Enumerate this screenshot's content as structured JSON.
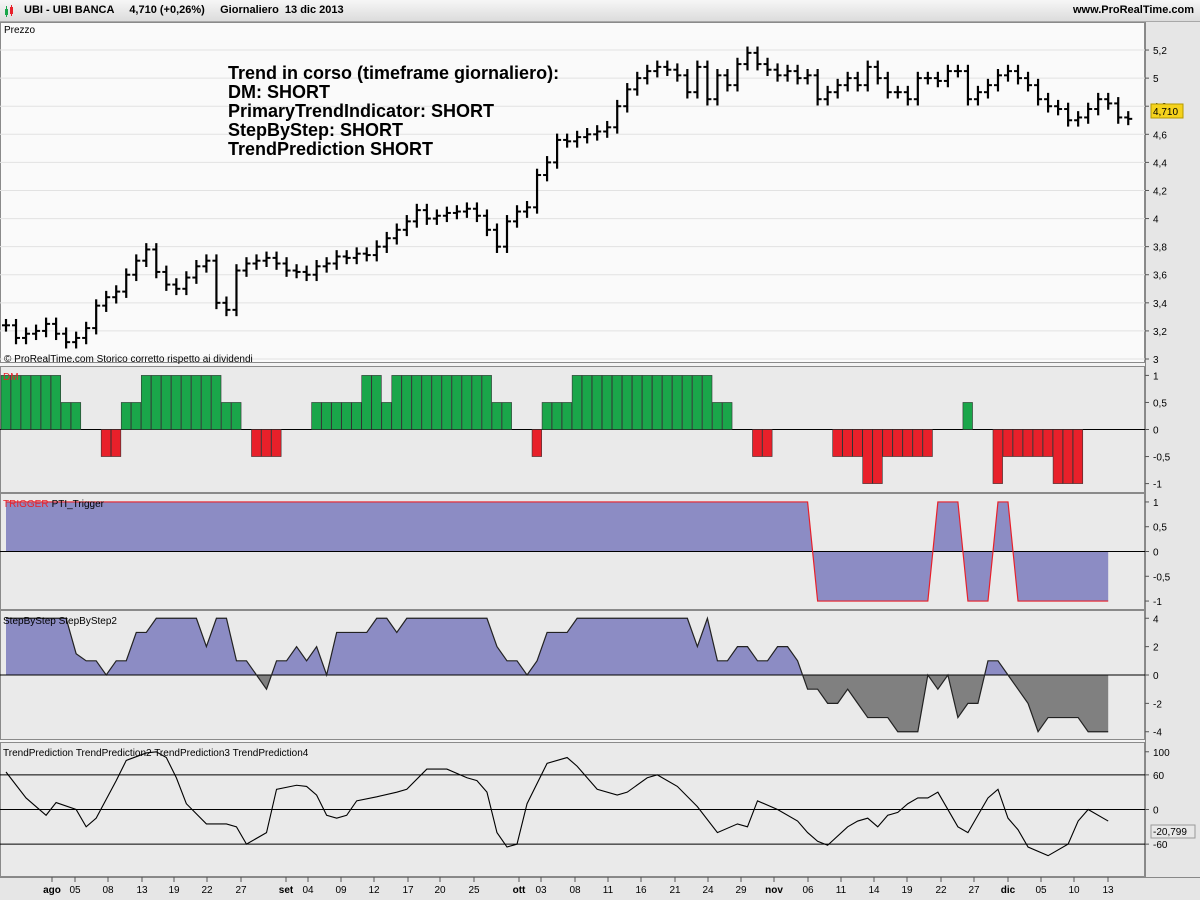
{
  "header": {
    "symbol": "UBI - UBI BANCA",
    "price": "4,710 (+0,26%)",
    "period": "Giornaliero  13 dic 2013",
    "site": "www.ProRealTime.com"
  },
  "price_panel": {
    "label": "Prezzo",
    "copyright": "© ProRealTime.com  Storico corretto rispetto ai dividendi",
    "annotation": [
      "Trend in corso (timeframe giornaliero):",
      "DM: SHORT",
      "PrimaryTrendIndicator: SHORT",
      "StepByStep: SHORT",
      "TrendPrediction SHORT"
    ],
    "current_price_tag": "4,710"
  },
  "dm_panel": {
    "label": "DM"
  },
  "trigger_panel": {
    "label_red": "TRIGGER",
    "label_black": "PTI_Trigger"
  },
  "step_panel": {
    "label": "StepByStep StepByStep2"
  },
  "trend_panel": {
    "label": "TrendPrediction TrendPrediction2 TrendPrediction3 TrendPrediction4",
    "value_tag": "-20,799"
  },
  "x_axis": {
    "ticks": [
      "ago",
      "05",
      "08",
      "13",
      "19",
      "22",
      "27",
      "set",
      "04",
      "09",
      "12",
      "17",
      "20",
      "25",
      "ott",
      "03",
      "08",
      "11",
      "16",
      "21",
      "24",
      "29",
      "nov",
      "06",
      "11",
      "14",
      "19",
      "22",
      "27",
      "dic",
      "05",
      "10",
      "13"
    ],
    "month_ticks": [
      "ago",
      "set",
      "ott",
      "nov",
      "dic"
    ]
  },
  "colors": {
    "bullish": "#1aa64a",
    "bearish": "#e8202a",
    "area_fill": "#8c8cc4",
    "negative_fill": "#808080",
    "price_bar": "#000000"
  },
  "chart_data": [
    {
      "type": "ohlc",
      "title": "UBI - UBI BANCA",
      "ylim": [
        3.0,
        5.3
      ],
      "yticks": [
        "3",
        "3,2",
        "3,4",
        "3,6",
        "3,8",
        "4",
        "4,2",
        "4,4",
        "4,6",
        "4,8",
        "5",
        "5,2"
      ],
      "closes": [
        3.24,
        3.15,
        3.18,
        3.2,
        3.25,
        3.18,
        3.12,
        3.15,
        3.22,
        3.38,
        3.44,
        3.48,
        3.6,
        3.7,
        3.78,
        3.62,
        3.53,
        3.5,
        3.58,
        3.66,
        3.7,
        3.4,
        3.35,
        3.63,
        3.68,
        3.7,
        3.72,
        3.68,
        3.63,
        3.62,
        3.6,
        3.66,
        3.68,
        3.73,
        3.72,
        3.75,
        3.74,
        3.8,
        3.86,
        3.92,
        3.98,
        4.06,
        4.0,
        4.02,
        4.04,
        4.05,
        4.07,
        4.02,
        3.92,
        3.8,
        3.98,
        4.05,
        4.08,
        4.31,
        4.4,
        4.56,
        4.55,
        4.58,
        4.6,
        4.62,
        4.65,
        4.8,
        4.92,
        5.0,
        5.05,
        5.08,
        5.06,
        5.02,
        4.9,
        5.08,
        4.85,
        5.02,
        4.95,
        5.1,
        5.18,
        5.1,
        5.06,
        5.02,
        5.05,
        5.0,
        5.02,
        4.85,
        4.9,
        4.95,
        5.0,
        4.95,
        5.08,
        5.0,
        4.9,
        4.9,
        4.85,
        5.0,
        5.0,
        4.98,
        5.05,
        5.05,
        4.85,
        4.9,
        4.95,
        5.02,
        5.05,
        5.0,
        4.95,
        4.85,
        4.8,
        4.78,
        4.7,
        4.72,
        4.78,
        4.85,
        4.82,
        4.72,
        4.71
      ]
    },
    {
      "type": "bar",
      "title": "DM",
      "ylim": [
        -1.1,
        1.1
      ],
      "yticks": [
        "1",
        "0,5",
        "0",
        "-0,5",
        "-1"
      ],
      "values": [
        1,
        1,
        1,
        1,
        1,
        1,
        0.5,
        0.5,
        0,
        0,
        -0.5,
        -0.5,
        0.5,
        0.5,
        1,
        1,
        1,
        1,
        1,
        1,
        1,
        1,
        0.5,
        0.5,
        0,
        -0.5,
        -0.5,
        -0.5,
        0,
        0,
        0,
        0.5,
        0.5,
        0.5,
        0.5,
        0.5,
        1,
        1,
        0.5,
        1,
        1,
        1,
        1,
        1,
        1,
        1,
        1,
        1,
        1,
        0.5,
        0.5,
        0,
        0,
        -0.5,
        0.5,
        0.5,
        0.5,
        1,
        1,
        1,
        1,
        1,
        1,
        1,
        1,
        1,
        1,
        1,
        1,
        1,
        1,
        0.5,
        0.5,
        0,
        0,
        -0.5,
        -0.5,
        0,
        0,
        0,
        0,
        0,
        0,
        -0.5,
        -0.5,
        -0.5,
        -1,
        -1,
        -0.5,
        -0.5,
        -0.5,
        -0.5,
        -0.5,
        0,
        0,
        0,
        0.5,
        0,
        0,
        -1,
        -0.5,
        -0.5,
        -0.5,
        -0.5,
        -0.5,
        -1,
        -1,
        -1
      ]
    },
    {
      "type": "area",
      "title": "TRIGGER PTI_Trigger",
      "ylim": [
        -1.1,
        1.1
      ],
      "yticks": [
        "1",
        "0,5",
        "0",
        "-0,5",
        "-1"
      ],
      "points": [
        [
          0,
          1
        ],
        [
          80,
          1
        ],
        [
          81,
          -1
        ],
        [
          92,
          -1
        ],
        [
          93,
          1
        ],
        [
          95,
          1
        ],
        [
          96,
          -1
        ],
        [
          98,
          -1
        ],
        [
          99,
          1
        ],
        [
          100,
          1
        ],
        [
          101,
          -1
        ],
        [
          110,
          -1
        ]
      ]
    },
    {
      "type": "area",
      "title": "StepByStep StepByStep2",
      "ylim": [
        -4.3,
        4.3
      ],
      "yticks": [
        "4",
        "2",
        "0",
        "-2",
        "-4"
      ],
      "points": [
        [
          0,
          4
        ],
        [
          6,
          4
        ],
        [
          7,
          1.5
        ],
        [
          8,
          1
        ],
        [
          9,
          1
        ],
        [
          10,
          0
        ],
        [
          11,
          1
        ],
        [
          12,
          1
        ],
        [
          13,
          3
        ],
        [
          14,
          3
        ],
        [
          15,
          4
        ],
        [
          16,
          4
        ],
        [
          17,
          4
        ],
        [
          18,
          4
        ],
        [
          19,
          4
        ],
        [
          20,
          2
        ],
        [
          21,
          4
        ],
        [
          22,
          4
        ],
        [
          23,
          1
        ],
        [
          24,
          1
        ],
        [
          25,
          0
        ],
        [
          26,
          -1
        ],
        [
          27,
          1
        ],
        [
          28,
          1
        ],
        [
          29,
          2
        ],
        [
          30,
          1
        ],
        [
          31,
          2
        ],
        [
          32,
          0
        ],
        [
          33,
          3
        ],
        [
          34,
          3
        ],
        [
          35,
          3
        ],
        [
          36,
          3
        ],
        [
          37,
          4
        ],
        [
          38,
          4
        ],
        [
          39,
          3
        ],
        [
          40,
          4
        ],
        [
          41,
          4
        ],
        [
          42,
          4
        ],
        [
          43,
          4
        ],
        [
          44,
          4
        ],
        [
          45,
          4
        ],
        [
          46,
          4
        ],
        [
          47,
          4
        ],
        [
          48,
          4
        ],
        [
          49,
          2
        ],
        [
          50,
          1
        ],
        [
          51,
          1
        ],
        [
          52,
          0
        ],
        [
          53,
          1
        ],
        [
          54,
          3
        ],
        [
          55,
          3
        ],
        [
          56,
          3
        ],
        [
          57,
          4
        ],
        [
          58,
          4
        ],
        [
          59,
          4
        ],
        [
          60,
          4
        ],
        [
          61,
          4
        ],
        [
          62,
          4
        ],
        [
          63,
          4
        ],
        [
          64,
          4
        ],
        [
          65,
          4
        ],
        [
          66,
          4
        ],
        [
          67,
          4
        ],
        [
          68,
          4
        ],
        [
          69,
          2
        ],
        [
          70,
          4
        ],
        [
          71,
          1
        ],
        [
          72,
          1
        ],
        [
          73,
          2
        ],
        [
          74,
          2
        ],
        [
          75,
          1
        ],
        [
          76,
          1
        ],
        [
          77,
          2
        ],
        [
          78,
          2
        ],
        [
          79,
          1
        ],
        [
          80,
          -1
        ],
        [
          81,
          -1
        ],
        [
          82,
          -2
        ],
        [
          83,
          -2
        ],
        [
          84,
          -1
        ],
        [
          85,
          -2
        ],
        [
          86,
          -3
        ],
        [
          87,
          -3
        ],
        [
          88,
          -3
        ],
        [
          89,
          -4
        ],
        [
          90,
          -4
        ],
        [
          91,
          -4
        ],
        [
          92,
          0
        ],
        [
          93,
          -1
        ],
        [
          94,
          0
        ],
        [
          95,
          -3
        ],
        [
          96,
          -2
        ],
        [
          97,
          -2
        ],
        [
          98,
          1
        ],
        [
          99,
          1
        ],
        [
          100,
          0
        ],
        [
          101,
          -1
        ],
        [
          102,
          -2
        ],
        [
          103,
          -4
        ],
        [
          104,
          -3
        ],
        [
          105,
          -3
        ],
        [
          106,
          -3
        ],
        [
          107,
          -3
        ],
        [
          108,
          -4
        ],
        [
          109,
          -4
        ],
        [
          110,
          -4
        ]
      ]
    },
    {
      "type": "line",
      "title": "TrendPrediction TrendPrediction2 TrendPrediction3 TrendPrediction4",
      "ylim": [
        -110,
        110
      ],
      "yticks": [
        "100",
        "60",
        "0",
        "-60"
      ],
      "hlines": [
        60,
        0,
        -60
      ],
      "points": [
        [
          0,
          65
        ],
        [
          2,
          20
        ],
        [
          4,
          -10
        ],
        [
          5,
          12
        ],
        [
          7,
          0
        ],
        [
          8,
          -30
        ],
        [
          9,
          -15
        ],
        [
          11,
          50
        ],
        [
          12,
          85
        ],
        [
          14,
          98
        ],
        [
          15,
          100
        ],
        [
          16,
          90
        ],
        [
          17,
          55
        ],
        [
          18,
          10
        ],
        [
          20,
          -25
        ],
        [
          22,
          -25
        ],
        [
          23,
          -30
        ],
        [
          24,
          -60
        ],
        [
          26,
          -40
        ],
        [
          27,
          35
        ],
        [
          29,
          42
        ],
        [
          30,
          40
        ],
        [
          31,
          25
        ],
        [
          32,
          -10
        ],
        [
          33,
          -15
        ],
        [
          34,
          -10
        ],
        [
          35,
          15
        ],
        [
          37,
          22
        ],
        [
          39,
          30
        ],
        [
          40,
          35
        ],
        [
          42,
          70
        ],
        [
          44,
          70
        ],
        [
          46,
          55
        ],
        [
          47,
          50
        ],
        [
          48,
          30
        ],
        [
          49,
          -40
        ],
        [
          50,
          -65
        ],
        [
          51,
          -60
        ],
        [
          52,
          10
        ],
        [
          54,
          80
        ],
        [
          56,
          90
        ],
        [
          57,
          75
        ],
        [
          59,
          35
        ],
        [
          61,
          25
        ],
        [
          62,
          30
        ],
        [
          64,
          55
        ],
        [
          65,
          60
        ],
        [
          67,
          40
        ],
        [
          69,
          5
        ],
        [
          71,
          -40
        ],
        [
          73,
          -25
        ],
        [
          74,
          -30
        ],
        [
          75,
          15
        ],
        [
          77,
          0
        ],
        [
          79,
          -20
        ],
        [
          80,
          -40
        ],
        [
          81,
          -55
        ],
        [
          82,
          -62
        ],
        [
          84,
          -30
        ],
        [
          85,
          -20
        ],
        [
          86,
          -15
        ],
        [
          87,
          -30
        ],
        [
          88,
          -10
        ],
        [
          89,
          -5
        ],
        [
          90,
          10
        ],
        [
          91,
          20
        ],
        [
          92,
          20
        ],
        [
          93,
          30
        ],
        [
          95,
          -30
        ],
        [
          96,
          -40
        ],
        [
          97,
          -10
        ],
        [
          98,
          20
        ],
        [
          99,
          35
        ],
        [
          100,
          -15
        ],
        [
          101,
          -35
        ],
        [
          102,
          -65
        ],
        [
          104,
          -80
        ],
        [
          106,
          -60
        ],
        [
          107,
          -20
        ],
        [
          108,
          0
        ],
        [
          110,
          -20
        ]
      ]
    }
  ]
}
